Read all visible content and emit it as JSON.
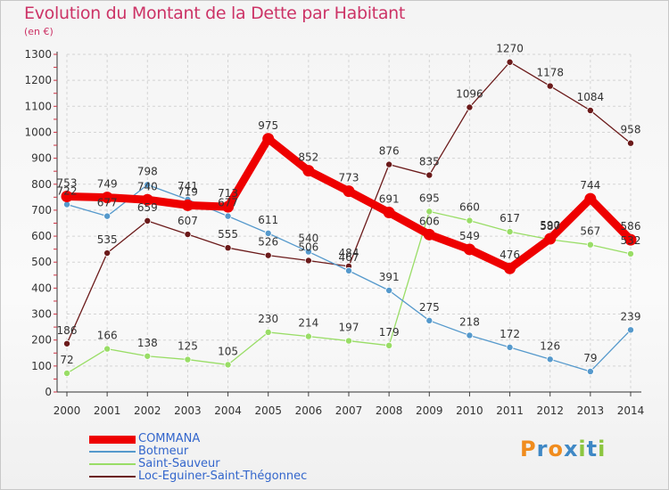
{
  "header": {
    "title": "Evolution du Montant de la Dette par Habitant",
    "unit": "(en €)"
  },
  "logo": {
    "letters": [
      "P",
      "r",
      "o",
      "x",
      "i",
      "t",
      "i"
    ],
    "colors": [
      "#f08c1e",
      "#3f88c5",
      "#f08c1e",
      "#3f88c5",
      "#8cc63f",
      "#3f88c5",
      "#8cc63f"
    ]
  },
  "chart_data": {
    "type": "line",
    "title": "Evolution du Montant de la Dette par Habitant",
    "ylabel": "(en €)",
    "xlabel": "",
    "x": [
      "2000",
      "2001",
      "2002",
      "2003",
      "2004",
      "2005",
      "2006",
      "2007",
      "2008",
      "2009",
      "2010",
      "2011",
      "2012",
      "2013",
      "2014"
    ],
    "ylim": [
      0,
      1300
    ],
    "yticks": [
      0,
      100,
      200,
      300,
      400,
      500,
      600,
      700,
      800,
      900,
      1000,
      1100,
      1200,
      1300
    ],
    "grid": true,
    "legend_position": "bottom-left",
    "series": [
      {
        "name": "Loc-Eguiner-Saint-Thégonnec",
        "color": "#6b1a1a",
        "weight": "thin",
        "values": [
          186,
          535,
          659,
          607,
          555,
          526,
          506,
          484,
          876,
          835,
          1096,
          1270,
          1178,
          1084,
          958
        ]
      },
      {
        "name": "Saint-Sauveur",
        "color": "#99dd66",
        "weight": "thin",
        "values": [
          72,
          166,
          138,
          125,
          105,
          230,
          214,
          197,
          179,
          695,
          660,
          617,
          587,
          567,
          532
        ]
      },
      {
        "name": "Botmeur",
        "color": "#5599cc",
        "weight": "thin",
        "values": [
          722,
          677,
          798,
          741,
          677,
          611,
          540,
          467,
          391,
          275,
          218,
          172,
          126,
          79,
          239
        ]
      },
      {
        "name": "COMMANA",
        "color": "#ee0000",
        "weight": "thick",
        "values": [
          753,
          749,
          740,
          719,
          713,
          975,
          852,
          773,
          691,
          606,
          549,
          476,
          590,
          744,
          586
        ]
      }
    ],
    "legend_order": [
      "COMMANA",
      "Botmeur",
      "Saint-Sauveur",
      "Loc-Eguiner-Saint-Thégonnec"
    ]
  }
}
